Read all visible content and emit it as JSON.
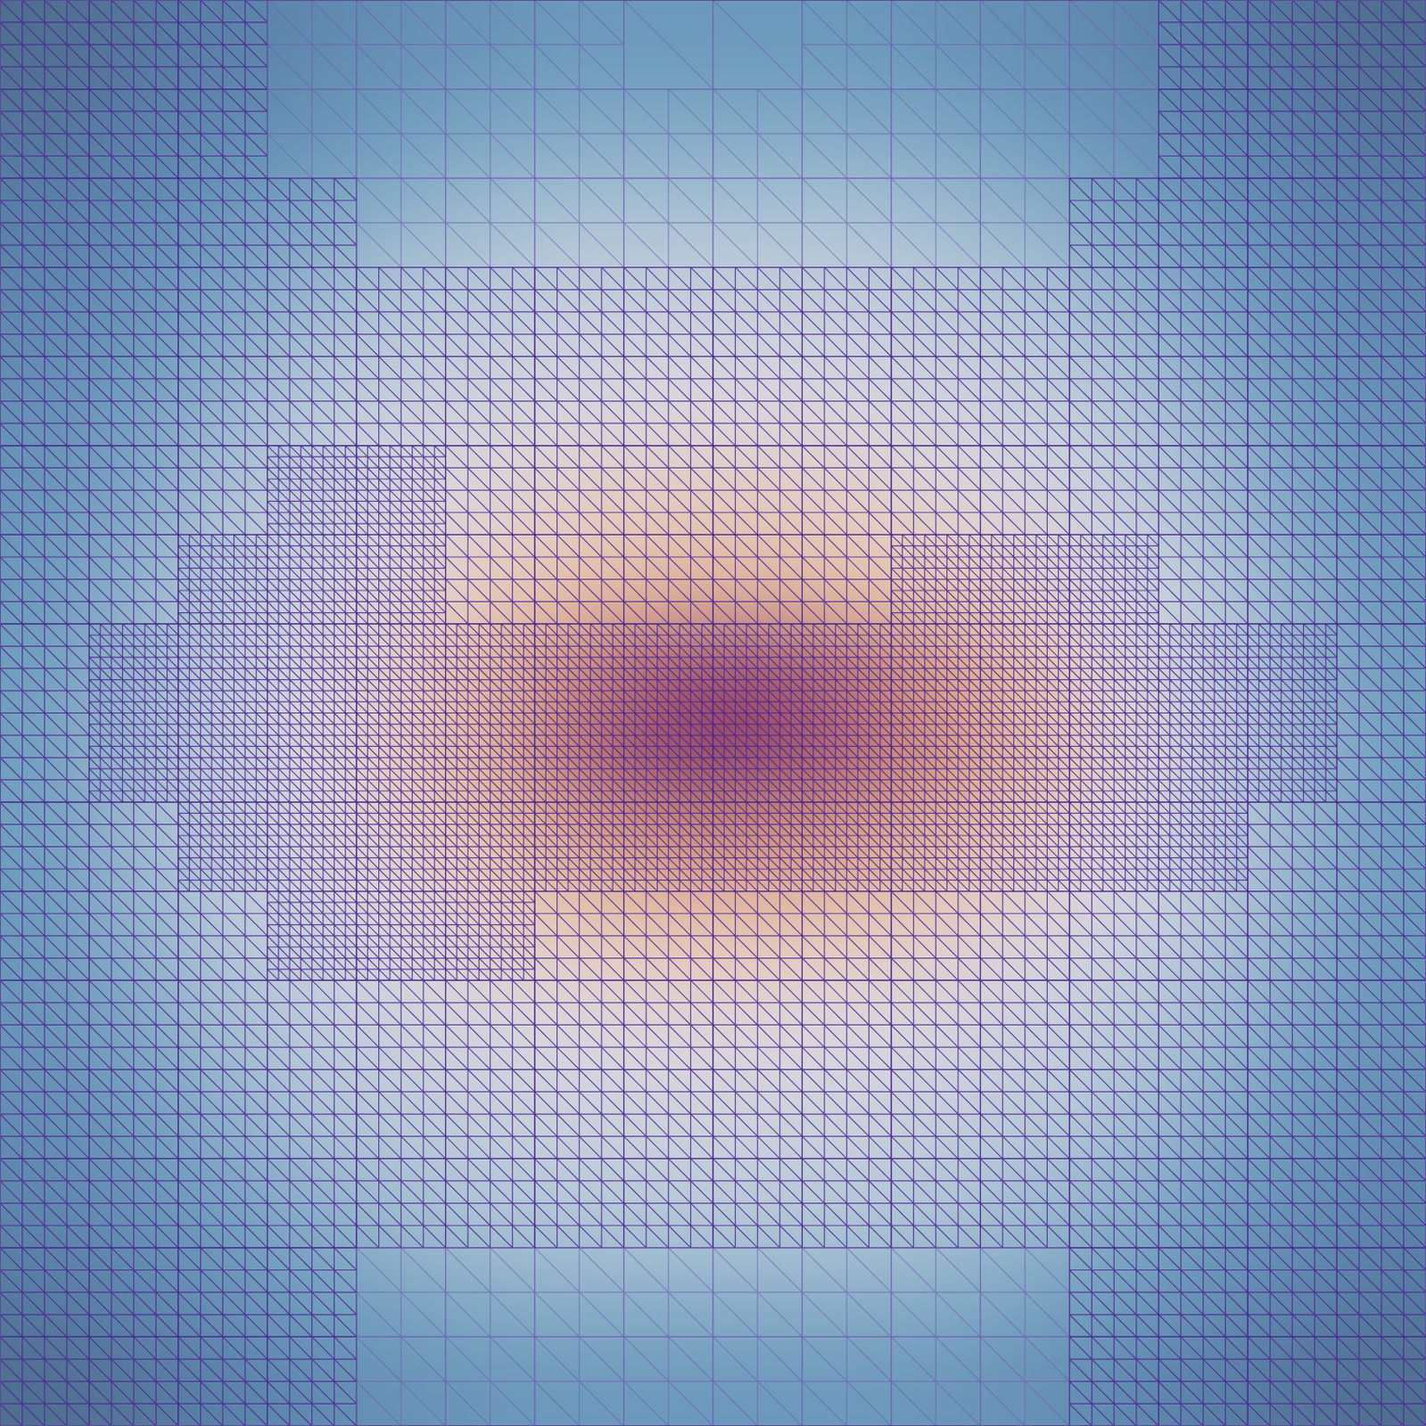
{
  "chart_data": {
    "type": "mesh",
    "tick_labels": false,
    "zlim": [
      0,
      1
    ],
    "field": [
      [
        0.05,
        0.08,
        0.12,
        0.15,
        0.18,
        0.2,
        0.22,
        0.22,
        0.22,
        0.22,
        0.2,
        0.18,
        0.15,
        0.12,
        0.08,
        0.05
      ],
      [
        0.08,
        0.12,
        0.16,
        0.2,
        0.24,
        0.27,
        0.28,
        0.28,
        0.28,
        0.28,
        0.27,
        0.24,
        0.2,
        0.16,
        0.12,
        0.08
      ],
      [
        0.12,
        0.16,
        0.22,
        0.27,
        0.31,
        0.34,
        0.36,
        0.36,
        0.36,
        0.36,
        0.34,
        0.31,
        0.27,
        0.22,
        0.16,
        0.12
      ],
      [
        0.15,
        0.2,
        0.27,
        0.33,
        0.38,
        0.41,
        0.43,
        0.44,
        0.44,
        0.43,
        0.41,
        0.38,
        0.33,
        0.27,
        0.2,
        0.15
      ],
      [
        0.18,
        0.24,
        0.31,
        0.38,
        0.43,
        0.46,
        0.48,
        0.49,
        0.49,
        0.48,
        0.46,
        0.43,
        0.38,
        0.31,
        0.24,
        0.18
      ],
      [
        0.2,
        0.27,
        0.35,
        0.42,
        0.48,
        0.52,
        0.55,
        0.57,
        0.57,
        0.55,
        0.52,
        0.48,
        0.42,
        0.35,
        0.27,
        0.2
      ],
      [
        0.22,
        0.3,
        0.38,
        0.45,
        0.52,
        0.58,
        0.63,
        0.66,
        0.66,
        0.63,
        0.6,
        0.55,
        0.47,
        0.38,
        0.3,
        0.22
      ],
      [
        0.24,
        0.32,
        0.4,
        0.48,
        0.56,
        0.66,
        0.78,
        0.86,
        0.88,
        0.82,
        0.74,
        0.64,
        0.52,
        0.42,
        0.32,
        0.24
      ],
      [
        0.25,
        0.33,
        0.41,
        0.49,
        0.58,
        0.68,
        0.82,
        0.9,
        0.9,
        0.84,
        0.76,
        0.66,
        0.54,
        0.43,
        0.33,
        0.25
      ],
      [
        0.24,
        0.32,
        0.4,
        0.48,
        0.55,
        0.62,
        0.7,
        0.76,
        0.76,
        0.72,
        0.66,
        0.58,
        0.5,
        0.41,
        0.32,
        0.24
      ],
      [
        0.22,
        0.3,
        0.37,
        0.44,
        0.5,
        0.55,
        0.59,
        0.61,
        0.61,
        0.59,
        0.56,
        0.51,
        0.45,
        0.38,
        0.3,
        0.22
      ],
      [
        0.2,
        0.27,
        0.34,
        0.4,
        0.45,
        0.48,
        0.5,
        0.51,
        0.51,
        0.5,
        0.48,
        0.45,
        0.4,
        0.34,
        0.27,
        0.2
      ],
      [
        0.17,
        0.23,
        0.3,
        0.36,
        0.4,
        0.43,
        0.45,
        0.46,
        0.46,
        0.45,
        0.43,
        0.4,
        0.36,
        0.3,
        0.23,
        0.17
      ],
      [
        0.14,
        0.19,
        0.25,
        0.3,
        0.34,
        0.37,
        0.38,
        0.39,
        0.39,
        0.38,
        0.37,
        0.34,
        0.3,
        0.25,
        0.19,
        0.14
      ],
      [
        0.1,
        0.14,
        0.19,
        0.24,
        0.27,
        0.29,
        0.3,
        0.3,
        0.3,
        0.3,
        0.29,
        0.27,
        0.24,
        0.19,
        0.14,
        0.1
      ],
      [
        0.05,
        0.08,
        0.12,
        0.16,
        0.19,
        0.21,
        0.22,
        0.22,
        0.22,
        0.22,
        0.21,
        0.19,
        0.16,
        0.12,
        0.08,
        0.05
      ]
    ],
    "refinement": [
      [
        2,
        2,
        2,
        1,
        1,
        1,
        1,
        0,
        0,
        1,
        1,
        1,
        1,
        2,
        2,
        2
      ],
      [
        2,
        2,
        2,
        1,
        1,
        1,
        1,
        1,
        1,
        1,
        1,
        1,
        1,
        2,
        2,
        2
      ],
      [
        2,
        2,
        2,
        2,
        1,
        1,
        1,
        1,
        1,
        1,
        1,
        1,
        2,
        2,
        2,
        2
      ],
      [
        2,
        2,
        2,
        2,
        2,
        2,
        2,
        2,
        2,
        2,
        2,
        2,
        2,
        2,
        2,
        2
      ],
      [
        2,
        2,
        2,
        2,
        2,
        2,
        2,
        2,
        2,
        2,
        2,
        2,
        2,
        2,
        2,
        2
      ],
      [
        2,
        2,
        2,
        3,
        3,
        2,
        2,
        2,
        2,
        2,
        2,
        2,
        2,
        2,
        2,
        2
      ],
      [
        2,
        2,
        3,
        3,
        3,
        2,
        2,
        2,
        2,
        2,
        3,
        3,
        3,
        2,
        2,
        2
      ],
      [
        2,
        3,
        3,
        3,
        3,
        3,
        3,
        3,
        3,
        3,
        3,
        3,
        3,
        3,
        3,
        2
      ],
      [
        2,
        3,
        3,
        3,
        3,
        3,
        3,
        3,
        3,
        3,
        3,
        3,
        3,
        3,
        3,
        2
      ],
      [
        2,
        2,
        3,
        3,
        3,
        3,
        3,
        3,
        3,
        3,
        3,
        3,
        3,
        3,
        2,
        2
      ],
      [
        2,
        2,
        2,
        3,
        3,
        3,
        2,
        2,
        2,
        2,
        2,
        2,
        2,
        2,
        2,
        2
      ],
      [
        2,
        2,
        2,
        2,
        2,
        2,
        2,
        2,
        2,
        2,
        2,
        2,
        2,
        2,
        2,
        2
      ],
      [
        2,
        2,
        2,
        2,
        2,
        2,
        2,
        2,
        2,
        2,
        2,
        2,
        2,
        2,
        2,
        2
      ],
      [
        2,
        2,
        2,
        2,
        2,
        2,
        2,
        2,
        2,
        2,
        2,
        2,
        2,
        2,
        2,
        2
      ],
      [
        2,
        2,
        2,
        2,
        1,
        1,
        1,
        1,
        1,
        1,
        1,
        1,
        2,
        2,
        2,
        2
      ],
      [
        2,
        2,
        2,
        2,
        1,
        1,
        1,
        1,
        1,
        1,
        1,
        1,
        2,
        2,
        2,
        2
      ]
    ]
  }
}
